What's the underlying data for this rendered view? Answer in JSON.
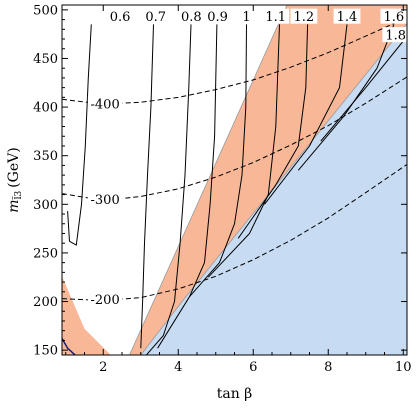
{
  "chart_data": {
    "type": "contour",
    "xlabel": "tan β",
    "ylabel": "m_{l̃3} (GeV)",
    "ylabel_main": "m",
    "ylabel_sub": "l̃3",
    "ylabel_unit": "(GeV)",
    "xlim": [
      0.9,
      10.1
    ],
    "ylim": [
      145,
      505
    ],
    "x_ticks": [
      2,
      4,
      6,
      8,
      10
    ],
    "x_tick_labels": [
      "2",
      "4",
      "6",
      "8",
      "10"
    ],
    "y_ticks": [
      150,
      200,
      250,
      300,
      350,
      400,
      450,
      500
    ],
    "y_tick_labels": [
      "150",
      "200",
      "250",
      "300",
      "350",
      "400",
      "450",
      "500"
    ],
    "colors": {
      "excluded_blue": "#c7dcf3",
      "allowed_orange": "#f8b898",
      "orange_edge": "#999999",
      "solid_contour": "#000000",
      "dashed_contour": "#000000",
      "blue_edge": "#1a1a6e"
    },
    "regions": [
      {
        "name": "blue-region",
        "fill": "#c7dcf3",
        "points": [
          [
            3.0,
            145
          ],
          [
            10.1,
            145
          ],
          [
            10.1,
            486
          ],
          [
            4.2,
            205
          ]
        ]
      },
      {
        "name": "orange-wedge",
        "fill": "#f8b898",
        "points": [
          [
            2.7,
            145
          ],
          [
            3.0,
            145
          ],
          [
            4.2,
            205
          ],
          [
            10.1,
            486
          ],
          [
            10.1,
            505
          ],
          [
            6.9,
            505
          ]
        ]
      },
      {
        "name": "orange-left",
        "fill": "#f8b898",
        "points": [
          [
            0.9,
            145
          ],
          [
            2.2,
            145
          ],
          [
            1.5,
            172
          ],
          [
            0.9,
            226
          ]
        ]
      },
      {
        "name": "orange-top-1",
        "fill": "#f8b898",
        "points": [
          [
            7.7,
            485
          ],
          [
            8.6,
            485
          ],
          [
            8.6,
            505
          ],
          [
            7.7,
            505
          ]
        ]
      },
      {
        "name": "orange-top-2",
        "fill": "#f8b898",
        "points": [
          [
            8.75,
            490
          ],
          [
            9.3,
            490
          ],
          [
            9.3,
            505
          ],
          [
            8.75,
            505
          ]
        ]
      },
      {
        "name": "orange-top-3",
        "fill": "#f8b898",
        "points": [
          [
            9.45,
            490
          ],
          [
            10.1,
            490
          ],
          [
            10.1,
            505
          ],
          [
            9.45,
            505
          ]
        ]
      }
    ],
    "blue_region_edge_corner": [
      [
        0.9,
        162
      ],
      [
        1.05,
        152
      ],
      [
        1.25,
        145
      ]
    ],
    "solid_contours": [
      {
        "label": "0.6",
        "label_at": [
          2.45,
          493
        ],
        "points": [
          [
            1.05,
            293
          ],
          [
            1.1,
            262
          ],
          [
            1.28,
            258
          ],
          [
            1.42,
            300
          ],
          [
            1.52,
            360
          ],
          [
            1.6,
            430
          ],
          [
            1.68,
            485
          ]
        ]
      },
      {
        "label": "0.7",
        "label_at": [
          3.4,
          493
        ],
        "points": [
          [
            3.0,
            152
          ],
          [
            3.05,
            200
          ],
          [
            3.1,
            260
          ],
          [
            3.18,
            330
          ],
          [
            3.27,
            400
          ],
          [
            3.34,
            485
          ]
        ]
      },
      {
        "label": "0.8",
        "label_at": [
          4.35,
          493
        ],
        "points": [
          [
            3.15,
            145
          ],
          [
            3.6,
            165
          ],
          [
            3.9,
            200
          ],
          [
            4.05,
            260
          ],
          [
            4.18,
            330
          ],
          [
            4.28,
            420
          ],
          [
            4.34,
            485
          ]
        ]
      },
      {
        "label": "0.9",
        "label_at": [
          5.05,
          493
        ],
        "points": [
          [
            3.45,
            152
          ],
          [
            4.3,
            205
          ],
          [
            4.7,
            240
          ],
          [
            4.85,
            300
          ],
          [
            4.97,
            370
          ],
          [
            5.03,
            485
          ]
        ]
      },
      {
        "label": "1",
        "label_at": [
          5.82,
          493
        ],
        "points": [
          [
            4.3,
            205
          ],
          [
            5.1,
            240
          ],
          [
            5.5,
            280
          ],
          [
            5.7,
            330
          ],
          [
            5.8,
            400
          ],
          [
            5.82,
            485
          ]
        ]
      },
      {
        "label": "1.1",
        "label_at": [
          6.6,
          493
        ],
        "points": [
          [
            4.8,
            225
          ],
          [
            5.9,
            270
          ],
          [
            6.4,
            310
          ],
          [
            6.6,
            380
          ],
          [
            6.7,
            485
          ]
        ]
      },
      {
        "label": "1.2",
        "label_at": [
          7.35,
          493
        ],
        "points": [
          [
            5.6,
            265
          ],
          [
            6.6,
            320
          ],
          [
            7.2,
            360
          ],
          [
            7.4,
            420
          ],
          [
            7.45,
            485
          ]
        ]
      },
      {
        "label": "1.4",
        "label_at": [
          8.5,
          493
        ],
        "points": [
          [
            6.3,
            300
          ],
          [
            7.5,
            360
          ],
          [
            8.3,
            420
          ],
          [
            8.5,
            485
          ]
        ]
      },
      {
        "label": "1.6",
        "label_at": [
          9.75,
          493
        ],
        "points": [
          [
            7.2,
            335
          ],
          [
            8.4,
            390
          ],
          [
            9.3,
            440
          ],
          [
            9.75,
            485
          ]
        ]
      },
      {
        "label": "1.8",
        "label_at": [
          9.8,
          474
        ],
        "points": [
          [
            7.8,
            365
          ],
          [
            9.0,
            420
          ],
          [
            10.0,
            468
          ]
        ]
      }
    ],
    "dashed_contours": [
      {
        "label": "-400",
        "label_at": [
          2.05,
          403
        ],
        "points": [
          [
            0.9,
            408
          ],
          [
            2.0,
            403
          ],
          [
            3.0,
            405
          ],
          [
            4.0,
            410
          ],
          [
            5.0,
            418
          ],
          [
            6.0,
            428
          ],
          [
            7.0,
            441
          ],
          [
            8.0,
            456
          ],
          [
            9.0,
            473
          ],
          [
            10.1,
            492
          ]
        ]
      },
      {
        "label": "-300",
        "label_at": [
          2.05,
          305
        ],
        "points": [
          [
            0.9,
            311
          ],
          [
            2.0,
            304
          ],
          [
            3.0,
            308
          ],
          [
            4.0,
            316
          ],
          [
            5.0,
            328
          ],
          [
            6.0,
            343
          ],
          [
            7.0,
            361
          ],
          [
            8.0,
            381
          ],
          [
            9.0,
            404
          ],
          [
            10.1,
            431
          ]
        ]
      },
      {
        "label": "-200",
        "label_at": [
          2.05,
          202
        ],
        "points": [
          [
            0.9,
            203
          ],
          [
            2.0,
            201
          ],
          [
            3.0,
            204
          ],
          [
            4.0,
            213
          ],
          [
            5.0,
            226
          ],
          [
            6.0,
            243
          ],
          [
            7.0,
            263
          ],
          [
            8.0,
            286
          ],
          [
            9.0,
            312
          ],
          [
            10.1,
            341
          ]
        ]
      }
    ]
  }
}
